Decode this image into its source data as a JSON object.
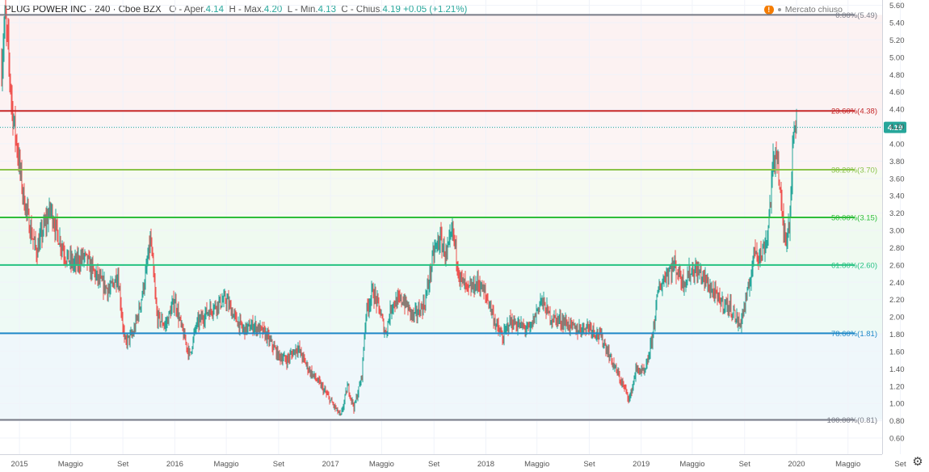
{
  "header": {
    "symbol": "PLUG POWER INC",
    "interval": "240",
    "exchange": "Cboe BZX",
    "open_label": "O - Aper.",
    "open_value": "4.14",
    "high_label": "H - Max.",
    "high_value": "4.20",
    "low_label": "L - Min.",
    "low_value": "4.13",
    "close_label": "C - Chius.",
    "close_value": "4.19",
    "change": "+0.05 (+1.21%)"
  },
  "market_status": {
    "alert_glyph": "!",
    "label": "Mercato chiuso"
  },
  "colors": {
    "up": "#26a69a",
    "down": "#ef5350",
    "last_price_badge": "#26a69a",
    "grid": "#f0f3fa",
    "axis_text": "#555555"
  },
  "chart_data": {
    "type": "candlestick",
    "symbol": "PLUG POWER INC",
    "interval": "240",
    "y_ticks": [
      "0.60",
      "0.80",
      "1.00",
      "1.20",
      "1.40",
      "1.60",
      "1.80",
      "2.00",
      "2.20",
      "2.40",
      "2.60",
      "2.80",
      "3.00",
      "3.20",
      "3.40",
      "3.60",
      "3.80",
      "4.00",
      "4.20",
      "4.40",
      "4.60",
      "4.80",
      "5.00",
      "5.20",
      "5.40",
      "5.60"
    ],
    "ylim": [
      0.6,
      5.6
    ],
    "x_ticks": [
      {
        "label": "2015",
        "date": "2015-01-01"
      },
      {
        "label": "Maggio",
        "date": "2015-05-01"
      },
      {
        "label": "Set",
        "date": "2015-09-01"
      },
      {
        "label": "2016",
        "date": "2016-01-01"
      },
      {
        "label": "Maggio",
        "date": "2016-05-01"
      },
      {
        "label": "Set",
        "date": "2016-09-01"
      },
      {
        "label": "2017",
        "date": "2017-01-01"
      },
      {
        "label": "Maggio",
        "date": "2017-05-01"
      },
      {
        "label": "Set",
        "date": "2017-09-01"
      },
      {
        "label": "2018",
        "date": "2018-01-01"
      },
      {
        "label": "Maggio",
        "date": "2018-05-01"
      },
      {
        "label": "Set",
        "date": "2018-09-01"
      },
      {
        "label": "2019",
        "date": "2019-01-01"
      },
      {
        "label": "Maggio",
        "date": "2019-05-01"
      },
      {
        "label": "Set",
        "date": "2019-09-01"
      },
      {
        "label": "2020",
        "date": "2020-01-01"
      },
      {
        "label": "Maggio",
        "date": "2020-05-01"
      },
      {
        "label": "Set",
        "date": "2020-09-01"
      }
    ],
    "price_path": [
      {
        "date": "2014-11-20",
        "price": 4.9
      },
      {
        "date": "2014-11-28",
        "price": 5.45
      },
      {
        "date": "2014-12-05",
        "price": 5.1
      },
      {
        "date": "2014-12-15",
        "price": 4.4
      },
      {
        "date": "2014-12-28",
        "price": 3.9
      },
      {
        "date": "2015-01-10",
        "price": 3.4
      },
      {
        "date": "2015-01-25",
        "price": 3.05
      },
      {
        "date": "2015-02-10",
        "price": 2.75
      },
      {
        "date": "2015-02-25",
        "price": 3.0
      },
      {
        "date": "2015-03-15",
        "price": 3.25
      },
      {
        "date": "2015-04-01",
        "price": 2.95
      },
      {
        "date": "2015-04-20",
        "price": 2.7
      },
      {
        "date": "2015-05-10",
        "price": 2.6
      },
      {
        "date": "2015-06-01",
        "price": 2.7
      },
      {
        "date": "2015-06-20",
        "price": 2.55
      },
      {
        "date": "2015-07-10",
        "price": 2.4
      },
      {
        "date": "2015-08-01",
        "price": 2.3
      },
      {
        "date": "2015-08-20",
        "price": 2.5
      },
      {
        "date": "2015-09-05",
        "price": 1.7
      },
      {
        "date": "2015-09-25",
        "price": 1.8
      },
      {
        "date": "2015-10-10",
        "price": 2.1
      },
      {
        "date": "2015-10-25",
        "price": 2.5
      },
      {
        "date": "2015-11-05",
        "price": 2.9
      },
      {
        "date": "2015-11-20",
        "price": 2.0
      },
      {
        "date": "2015-12-10",
        "price": 1.9
      },
      {
        "date": "2016-01-01",
        "price": 2.2
      },
      {
        "date": "2016-01-15",
        "price": 1.9
      },
      {
        "date": "2016-02-05",
        "price": 1.55
      },
      {
        "date": "2016-02-20",
        "price": 1.9
      },
      {
        "date": "2016-03-15",
        "price": 2.05
      },
      {
        "date": "2016-04-10",
        "price": 2.15
      },
      {
        "date": "2016-05-01",
        "price": 2.2
      },
      {
        "date": "2016-05-20",
        "price": 2.0
      },
      {
        "date": "2016-06-10",
        "price": 1.85
      },
      {
        "date": "2016-07-05",
        "price": 1.9
      },
      {
        "date": "2016-08-01",
        "price": 1.8
      },
      {
        "date": "2016-09-01",
        "price": 1.55
      },
      {
        "date": "2016-09-20",
        "price": 1.5
      },
      {
        "date": "2016-10-15",
        "price": 1.65
      },
      {
        "date": "2016-11-10",
        "price": 1.4
      },
      {
        "date": "2016-12-10",
        "price": 1.2
      },
      {
        "date": "2017-01-05",
        "price": 1.0
      },
      {
        "date": "2017-01-25",
        "price": 0.85
      },
      {
        "date": "2017-02-10",
        "price": 1.2
      },
      {
        "date": "2017-02-25",
        "price": 0.95
      },
      {
        "date": "2017-03-15",
        "price": 1.3
      },
      {
        "date": "2017-03-25",
        "price": 2.05
      },
      {
        "date": "2017-04-10",
        "price": 2.3
      },
      {
        "date": "2017-04-25",
        "price": 2.1
      },
      {
        "date": "2017-05-10",
        "price": 1.8
      },
      {
        "date": "2017-05-25",
        "price": 2.15
      },
      {
        "date": "2017-06-20",
        "price": 2.2
      },
      {
        "date": "2017-07-15",
        "price": 2.0
      },
      {
        "date": "2017-08-10",
        "price": 2.15
      },
      {
        "date": "2017-09-01",
        "price": 2.75
      },
      {
        "date": "2017-09-15",
        "price": 2.9
      },
      {
        "date": "2017-10-01",
        "price": 2.7
      },
      {
        "date": "2017-10-15",
        "price": 3.0
      },
      {
        "date": "2017-11-01",
        "price": 2.45
      },
      {
        "date": "2017-11-20",
        "price": 2.3
      },
      {
        "date": "2017-12-15",
        "price": 2.4
      },
      {
        "date": "2018-01-10",
        "price": 2.15
      },
      {
        "date": "2018-01-25",
        "price": 1.9
      },
      {
        "date": "2018-02-10",
        "price": 1.75
      },
      {
        "date": "2018-02-25",
        "price": 1.95
      },
      {
        "date": "2018-03-20",
        "price": 1.9
      },
      {
        "date": "2018-04-15",
        "price": 1.85
      },
      {
        "date": "2018-05-10",
        "price": 2.2
      },
      {
        "date": "2018-06-01",
        "price": 2.0
      },
      {
        "date": "2018-07-01",
        "price": 1.95
      },
      {
        "date": "2018-08-01",
        "price": 1.85
      },
      {
        "date": "2018-09-01",
        "price": 1.9
      },
      {
        "date": "2018-10-01",
        "price": 1.75
      },
      {
        "date": "2018-11-01",
        "price": 1.4
      },
      {
        "date": "2018-11-20",
        "price": 1.2
      },
      {
        "date": "2018-12-05",
        "price": 1.05
      },
      {
        "date": "2018-12-20",
        "price": 1.4
      },
      {
        "date": "2019-01-10",
        "price": 1.35
      },
      {
        "date": "2019-01-25",
        "price": 1.7
      },
      {
        "date": "2019-02-10",
        "price": 2.3
      },
      {
        "date": "2019-03-01",
        "price": 2.5
      },
      {
        "date": "2019-03-20",
        "price": 2.6
      },
      {
        "date": "2019-04-10",
        "price": 2.4
      },
      {
        "date": "2019-05-01",
        "price": 2.55
      },
      {
        "date": "2019-05-20",
        "price": 2.5
      },
      {
        "date": "2019-06-10",
        "price": 2.35
      },
      {
        "date": "2019-07-01",
        "price": 2.2
      },
      {
        "date": "2019-08-01",
        "price": 2.1
      },
      {
        "date": "2019-08-20",
        "price": 1.9
      },
      {
        "date": "2019-09-10",
        "price": 2.3
      },
      {
        "date": "2019-09-25",
        "price": 2.8
      },
      {
        "date": "2019-10-10",
        "price": 2.7
      },
      {
        "date": "2019-10-25",
        "price": 2.95
      },
      {
        "date": "2019-11-05",
        "price": 3.65
      },
      {
        "date": "2019-11-15",
        "price": 4.0
      },
      {
        "date": "2019-11-25",
        "price": 3.3
      },
      {
        "date": "2019-12-05",
        "price": 2.9
      },
      {
        "date": "2019-12-15",
        "price": 3.1
      },
      {
        "date": "2019-12-22",
        "price": 3.8
      },
      {
        "date": "2019-12-28",
        "price": 4.3
      },
      {
        "date": "2020-01-02",
        "price": 4.19
      }
    ],
    "last_price": 4.19,
    "fibonacci": [
      {
        "label": "0.00%(5.49)",
        "price": 5.49,
        "color": "#787b86"
      },
      {
        "label": "23.60%(4.38)",
        "price": 4.38,
        "color": "#c62828"
      },
      {
        "label": "38.20%(3.70)",
        "price": 3.7,
        "color": "#8bc34a"
      },
      {
        "label": "50.00%(3.15)",
        "price": 3.15,
        "color": "#2ebd3a"
      },
      {
        "label": "61.80%(2.60)",
        "price": 2.6,
        "color": "#26c281"
      },
      {
        "label": "78.60%(1.81)",
        "price": 1.81,
        "color": "#1e88c8"
      },
      {
        "label": "100.00%(0.81)",
        "price": 0.81,
        "color": "#787b86"
      }
    ],
    "fib_fills": [
      "rgba(198,40,40,0.06)",
      "rgba(198,40,40,0.05)",
      "rgba(139,195,74,0.08)",
      "rgba(46,189,58,0.08)",
      "rgba(38,194,129,0.08)",
      "rgba(30,136,200,0.07)"
    ]
  }
}
